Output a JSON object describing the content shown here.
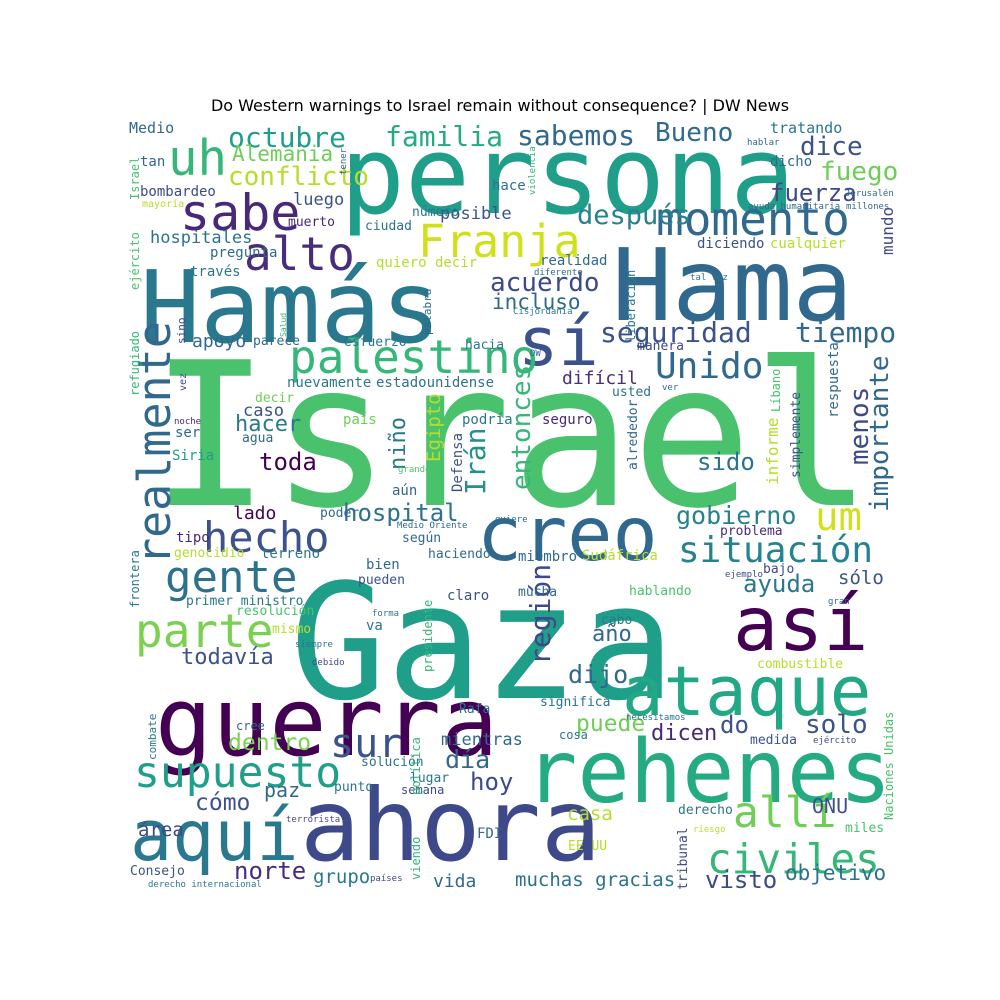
{
  "title": "Do Western warnings to Israel remain without consequence? | DW News",
  "colors": {
    "background": "#ffffff",
    "palette": [
      "#440154",
      "#482878",
      "#3e4989",
      "#31688e",
      "#26828e",
      "#1f9e89",
      "#35b779",
      "#6ece58",
      "#b5de2b",
      "#fde725"
    ]
  },
  "words": [
    {
      "text": "Israel",
      "rank": 1.0,
      "color": "#4ac16d"
    },
    {
      "text": "Gaza",
      "rank": 0.92,
      "color": "#1f9e89"
    },
    {
      "text": "persona",
      "rank": 0.72,
      "color": "#1f9e89"
    },
    {
      "text": "ahora",
      "rank": 0.7,
      "color": "#3e4989"
    },
    {
      "text": "Hamás",
      "rank": 0.66,
      "color": "#2a788e"
    },
    {
      "text": "Hama",
      "rank": 0.66,
      "color": "#31688e"
    },
    {
      "text": "guerra",
      "rank": 0.63,
      "color": "#440154"
    },
    {
      "text": "rehenes",
      "rank": 0.58,
      "color": "#25ab82"
    },
    {
      "text": "creo",
      "rank": 0.5,
      "color": "#31688e"
    },
    {
      "text": "así",
      "rank": 0.5,
      "color": "#440154"
    },
    {
      "text": "aquí",
      "rank": 0.47,
      "color": "#2a788e"
    },
    {
      "text": "ataque",
      "rank": 0.46,
      "color": "#22a884"
    },
    {
      "text": "sí",
      "rank": 0.45,
      "color": "#3b528b"
    },
    {
      "text": "sabe",
      "rank": 0.34,
      "color": "#482878"
    },
    {
      "text": "uh",
      "rank": 0.33,
      "color": "#35b779"
    },
    {
      "text": "Franja",
      "rank": 0.3,
      "color": "#d0e11c"
    },
    {
      "text": "momento",
      "rank": 0.31,
      "color": "#31688e"
    },
    {
      "text": "alto",
      "rank": 0.3,
      "color": "#472d7b"
    },
    {
      "text": "palestino",
      "rank": 0.3,
      "color": "#35b779"
    },
    {
      "text": "realmente",
      "rank": 0.29,
      "color": "#31688e"
    },
    {
      "text": "hecho",
      "rank": 0.28,
      "color": "#3b528b"
    },
    {
      "text": "gente",
      "rank": 0.29,
      "color": "#2c728e"
    },
    {
      "text": "parte",
      "rank": 0.3,
      "color": "#7ad151"
    },
    {
      "text": "supuesto",
      "rank": 0.29,
      "color": "#1f9e89"
    },
    {
      "text": "allí",
      "rank": 0.29,
      "color": "#6ece58"
    },
    {
      "text": "civiles",
      "rank": 0.28,
      "color": "#35b779"
    },
    {
      "text": "sur",
      "rank": 0.27,
      "color": "#3b528b"
    },
    {
      "text": "um",
      "rank": 0.26,
      "color": "#d0e11c"
    },
    {
      "text": "situación",
      "rank": 0.24,
      "color": "#26828e"
    },
    {
      "text": "Unido",
      "rank": 0.24,
      "color": "#31688e"
    },
    {
      "text": "seguridad",
      "rank": 0.19,
      "color": "#3b528b"
    },
    {
      "text": "tiempo",
      "rank": 0.19,
      "color": "#31688e"
    },
    {
      "text": "Irán",
      "rank": 0.19,
      "color": "#21918c"
    },
    {
      "text": "entonces",
      "rank": 0.16,
      "color": "#35b779"
    },
    {
      "text": "región",
      "rank": 0.18,
      "color": "#3e4989"
    },
    {
      "text": "importante",
      "rank": 0.17,
      "color": "#31688e"
    },
    {
      "text": "menos",
      "rank": 0.17,
      "color": "#3e4989"
    },
    {
      "text": "octubre",
      "rank": 0.19,
      "color": "#1f9e89"
    },
    {
      "text": "familia",
      "rank": 0.19,
      "color": "#25ab82"
    },
    {
      "text": "sabemos",
      "rank": 0.19,
      "color": "#31688e"
    },
    {
      "text": "Bueno",
      "rank": 0.18,
      "color": "#31688e"
    },
    {
      "text": "dice",
      "rank": 0.18,
      "color": "#3b528b"
    },
    {
      "text": "fuego",
      "rank": 0.18,
      "color": "#6ece58"
    },
    {
      "text": "conflicto",
      "rank": 0.18,
      "color": "#b5de2b"
    },
    {
      "text": "fuerza",
      "rank": 0.16,
      "color": "#3e4989"
    },
    {
      "text": "después",
      "rank": 0.17,
      "color": "#26828e"
    },
    {
      "text": "Alemania",
      "rank": 0.14,
      "color": "#6ece58"
    },
    {
      "text": "acuerdo",
      "rank": 0.17,
      "color": "#3e4989"
    },
    {
      "text": "incluso",
      "rank": 0.14,
      "color": "#31688e"
    },
    {
      "text": "hospital",
      "rank": 0.16,
      "color": "#2c728e"
    },
    {
      "text": "toda",
      "rank": 0.16,
      "color": "#440154"
    },
    {
      "text": "sido",
      "rank": 0.16,
      "color": "#2c728e"
    },
    {
      "text": "gobierno",
      "rank": 0.16,
      "color": "#26828e"
    },
    {
      "text": "ayuda",
      "rank": 0.16,
      "color": "#2a788e"
    },
    {
      "text": "dijo",
      "rank": 0.16,
      "color": "#31688e"
    },
    {
      "text": "puede",
      "rank": 0.15,
      "color": "#6ece58"
    },
    {
      "text": "solo",
      "rank": 0.16,
      "color": "#3b528b"
    },
    {
      "text": "dicen",
      "rank": 0.14,
      "color": "#482878"
    },
    {
      "text": "do",
      "rank": 0.16,
      "color": "#3b528b"
    },
    {
      "text": "dentro",
      "rank": 0.15,
      "color": "#7ad151"
    },
    {
      "text": "día",
      "rank": 0.16,
      "color": "#31688e"
    },
    {
      "text": "hoy",
      "rank": 0.16,
      "color": "#3e4989"
    },
    {
      "text": "cómo",
      "rank": 0.15,
      "color": "#3b528b"
    },
    {
      "text": "norte",
      "rank": 0.16,
      "color": "#472d7b"
    },
    {
      "text": "todavía",
      "rank": 0.14,
      "color": "#3b528b"
    },
    {
      "text": "visto",
      "rank": 0.15,
      "color": "#3e4989"
    },
    {
      "text": "objetivo",
      "rank": 0.13,
      "color": "#2c728e"
    },
    {
      "text": "muchas gracias",
      "rank": 0.12,
      "color": "#2c728e"
    },
    {
      "text": "año",
      "rank": 0.14,
      "color": "#31688e"
    },
    {
      "text": "sólo",
      "rank": 0.12,
      "color": "#3b528b"
    },
    {
      "text": "ONU",
      "rank": 0.13,
      "color": "#3b528b"
    },
    {
      "text": "casa",
      "rank": 0.12,
      "color": "#b5de2b"
    },
    {
      "text": "paz",
      "rank": 0.12,
      "color": "#31688e"
    },
    {
      "text": "área",
      "rank": 0.12,
      "color": "#3e4989"
    },
    {
      "text": "grupo",
      "rank": 0.12,
      "color": "#2a788e"
    },
    {
      "text": "vida",
      "rank": 0.11,
      "color": "#31688e"
    },
    {
      "text": "mientras",
      "rank": 0.11,
      "color": "#31688e"
    },
    {
      "text": "hacer",
      "rank": 0.14,
      "color": "#2a788e"
    },
    {
      "text": "caso",
      "rank": 0.11,
      "color": "#3b528b"
    },
    {
      "text": "niño",
      "rank": 0.12,
      "color": "#2a788e"
    },
    {
      "text": "Egipto",
      "rank": 0.11,
      "color": "#b5de2b"
    },
    {
      "text": "difícil",
      "rank": 0.11,
      "color": "#472d7b"
    },
    {
      "text": "apoyo",
      "rank": 0.11,
      "color": "#31688e"
    },
    {
      "text": "lado",
      "rank": 0.11,
      "color": "#440154"
    },
    {
      "text": "tipo",
      "rank": 0.09,
      "color": "#482878"
    },
    {
      "text": "hospitales",
      "rank": 0.11,
      "color": "#2c728e"
    },
    {
      "text": "luego",
      "rank": 0.11,
      "color": "#3b528b"
    },
    {
      "text": "posible",
      "rank": 0.11,
      "color": "#3b528b"
    },
    {
      "text": "informe",
      "rank": 0.1,
      "color": "#b5de2b"
    },
    {
      "text": "Defensa",
      "rank": 0.09,
      "color": "#3b528b"
    },
    {
      "text": "mundo",
      "rank": 0.09,
      "color": "#3e4989"
    },
    {
      "text": "respuesta",
      "rank": 0.08,
      "color": "#31688e"
    },
    {
      "text": "simplemente",
      "rank": 0.08,
      "color": "#3b528b"
    },
    {
      "text": "Líbano",
      "rank": 0.07,
      "color": "#4ac16d"
    },
    {
      "text": "tratando",
      "rank": 0.09,
      "color": "#2a788e"
    },
    {
      "text": "dicho",
      "rank": 0.09,
      "color": "#31688e"
    },
    {
      "text": "Medio",
      "rank": 0.09,
      "color": "#31688e"
    },
    {
      "text": "tan",
      "rank": 0.09,
      "color": "#31688e"
    },
    {
      "text": "bombardeo",
      "rank": 0.09,
      "color": "#3e4989"
    },
    {
      "text": "muerto",
      "rank": 0.09,
      "color": "#482878"
    },
    {
      "text": "número",
      "rank": 0.08,
      "color": "#2a788e"
    },
    {
      "text": "hace",
      "rank": 0.08,
      "color": "#2c728e"
    },
    {
      "text": "ciudad",
      "rank": 0.08,
      "color": "#2c728e"
    },
    {
      "text": "pregunta",
      "rank": 0.08,
      "color": "#31688e"
    },
    {
      "text": "través",
      "rank": 0.08,
      "color": "#2a788e"
    },
    {
      "text": "quiero decir",
      "rank": 0.08,
      "color": "#b5de2b"
    },
    {
      "text": "realidad",
      "rank": 0.08,
      "color": "#31688e"
    },
    {
      "text": "diciendo",
      "rank": 0.08,
      "color": "#3b528b"
    },
    {
      "text": "cualquier",
      "rank": 0.08,
      "color": "#b5de2b"
    },
    {
      "text": "esfuerzo",
      "rank": 0.08,
      "color": "#2a788e"
    },
    {
      "text": "parece",
      "rank": 0.08,
      "color": "#31688e"
    },
    {
      "text": "hacia",
      "rank": 0.08,
      "color": "#2a788e"
    },
    {
      "text": "manera",
      "rank": 0.08,
      "color": "#3e4989"
    },
    {
      "text": "nuevamente",
      "rank": 0.08,
      "color": "#2a788e"
    },
    {
      "text": "estadounidense",
      "rank": 0.08,
      "color": "#2c728e"
    },
    {
      "text": "usted",
      "rank": 0.08,
      "color": "#2c728e"
    },
    {
      "text": "decir",
      "rank": 0.08,
      "color": "#6ece58"
    },
    {
      "text": "ser",
      "rank": 0.08,
      "color": "#31688e"
    },
    {
      "text": "agua",
      "rank": 0.08,
      "color": "#31688e"
    },
    {
      "text": "Siria",
      "rank": 0.08,
      "color": "#1f9e89"
    },
    {
      "text": "país",
      "rank": 0.07,
      "color": "#6ece58"
    },
    {
      "text": "podría",
      "rank": 0.08,
      "color": "#2a788e"
    },
    {
      "text": "seguro",
      "rank": 0.08,
      "color": "#482878"
    },
    {
      "text": "alrededor",
      "rank": 0.07,
      "color": "#31688e"
    },
    {
      "text": "aún",
      "rank": 0.07,
      "color": "#31688e"
    },
    {
      "text": "poder",
      "rank": 0.07,
      "color": "#31688e"
    },
    {
      "text": "según",
      "rank": 0.08,
      "color": "#31688e"
    },
    {
      "text": "haciendo",
      "rank": 0.08,
      "color": "#31688e"
    },
    {
      "text": "miembro",
      "rank": 0.08,
      "color": "#31688e"
    },
    {
      "text": "Sudáfrica",
      "rank": 0.08,
      "color": "#b5de2b"
    },
    {
      "text": "problema",
      "rank": 0.08,
      "color": "#472d7b"
    },
    {
      "text": "bajo",
      "rank": 0.07,
      "color": "#3e4989"
    },
    {
      "text": "genocidio",
      "rank": 0.07,
      "color": "#b5de2b"
    },
    {
      "text": "terreno",
      "rank": 0.08,
      "color": "#2a788e"
    },
    {
      "text": "bien",
      "rank": 0.08,
      "color": "#31688e"
    },
    {
      "text": "pueden",
      "rank": 0.07,
      "color": "#3b528b"
    },
    {
      "text": "mucha",
      "rank": 0.07,
      "color": "#31688e"
    },
    {
      "text": "hablando",
      "rank": 0.08,
      "color": "#4ac16d"
    },
    {
      "text": "primer ministro",
      "rank": 0.08,
      "color": "#2a788e"
    },
    {
      "text": "resolución",
      "rank": 0.08,
      "color": "#4ac16d"
    },
    {
      "text": "claro",
      "rank": 0.08,
      "color": "#3b528b"
    },
    {
      "text": "cabo",
      "rank": 0.07,
      "color": "#2a788e"
    },
    {
      "text": "mismo",
      "rank": 0.07,
      "color": "#b5de2b"
    },
    {
      "text": "va",
      "rank": 0.07,
      "color": "#2c728e"
    },
    {
      "text": "presidente",
      "rank": 0.07,
      "color": "#35b779"
    },
    {
      "text": "combustible",
      "rank": 0.07,
      "color": "#b5de2b"
    },
    {
      "text": "significa",
      "rank": 0.08,
      "color": "#2c728e"
    },
    {
      "text": "Rafa",
      "rank": 0.07,
      "color": "#2c728e"
    },
    {
      "text": "cosa",
      "rank": 0.07,
      "color": "#2c728e"
    },
    {
      "text": "medida",
      "rank": 0.07,
      "color": "#3b528b"
    },
    {
      "text": "cree",
      "rank": 0.07,
      "color": "#31688e"
    },
    {
      "text": "solución",
      "rank": 0.07,
      "color": "#2c728e"
    },
    {
      "text": "lugar",
      "rank": 0.07,
      "color": "#2a788e"
    },
    {
      "text": "punto",
      "rank": 0.07,
      "color": "#2c728e"
    },
    {
      "text": "semana",
      "rank": 0.07,
      "color": "#3e4989"
    },
    {
      "text": "derecho",
      "rank": 0.07,
      "color": "#2c728e"
    },
    {
      "text": "FDI",
      "rank": 0.07,
      "color": "#31688e"
    },
    {
      "text": "EE UU",
      "rank": 0.07,
      "color": "#b5de2b"
    },
    {
      "text": "miles",
      "rank": 0.07,
      "color": "#4ac16d"
    },
    {
      "text": "Consejo",
      "rank": 0.07,
      "color": "#3b528b"
    },
    {
      "text": "tribunal",
      "rank": 0.07,
      "color": "#3e4989"
    },
    {
      "text": "viendo",
      "rank": 0.07,
      "color": "#35b779"
    },
    {
      "text": "política",
      "rank": 0.07,
      "color": "#35b779"
    },
    {
      "text": "frontera",
      "rank": 0.06,
      "color": "#2a788e"
    },
    {
      "text": "combate",
      "rank": 0.06,
      "color": "#2a788e"
    },
    {
      "text": "refugiado",
      "rank": 0.06,
      "color": "#35b779"
    },
    {
      "text": "ejército",
      "rank": 0.06,
      "color": "#4ac16d"
    },
    {
      "text": "Israel",
      "rank": 0.06,
      "color": "#4ac16d",
      "small": true
    },
    {
      "text": "Naciones Unidas",
      "rank": 0.06,
      "color": "#4ac16d"
    },
    {
      "text": "liberación",
      "rank": 0.06,
      "color": "#2a788e"
    },
    {
      "text": "palabra",
      "rank": 0.06,
      "color": "#31688e"
    },
    {
      "text": "mayoría",
      "rank": 0.04,
      "color": "#b5de2b"
    },
    {
      "text": "tener",
      "rank": 0.04,
      "color": "#31688e"
    },
    {
      "text": "violencia",
      "rank": 0.04,
      "color": "#35b779"
    },
    {
      "text": "Cisjordania",
      "rank": 0.05,
      "color": "#2a788e"
    },
    {
      "text": "diferente",
      "rank": 0.04,
      "color": "#31688e"
    },
    {
      "text": "Salud",
      "rank": 0.04,
      "color": "#35b779"
    },
    {
      "text": "hablar",
      "rank": 0.04,
      "color": "#31688e"
    },
    {
      "text": "Jerusalén",
      "rank": 0.04,
      "color": "#31688e"
    },
    {
      "text": "ayuda humanitaria",
      "rank": 0.04,
      "color": "#31688e"
    },
    {
      "text": "millones",
      "rank": 0.04,
      "color": "#31688e"
    },
    {
      "text": "tal vez",
      "rank": 0.04,
      "color": "#2a788e"
    },
    {
      "text": "vez",
      "rank": 0.05,
      "color": "#3e4989"
    },
    {
      "text": "sino",
      "rank": 0.05,
      "color": "#3e4989"
    },
    {
      "text": "noche",
      "rank": 0.04,
      "color": "#482878"
    },
    {
      "text": "grande",
      "rank": 0.04,
      "color": "#4ac16d"
    },
    {
      "text": "DW",
      "rank": 0.04,
      "color": "#31688e"
    },
    {
      "text": "ver",
      "rank": 0.04,
      "color": "#31688e"
    },
    {
      "text": "quiere",
      "rank": 0.04,
      "color": "#31688e"
    },
    {
      "text": "Medio Oriente",
      "rank": 0.04,
      "color": "#31688e"
    },
    {
      "text": "ejemplo",
      "rank": 0.04,
      "color": "#3e4989"
    },
    {
      "text": "gran",
      "rank": 0.04,
      "color": "#31688e"
    },
    {
      "text": "forma",
      "rank": 0.04,
      "color": "#2a788e"
    },
    {
      "text": "siempre",
      "rank": 0.04,
      "color": "#2c728e"
    },
    {
      "text": "debido",
      "rank": 0.04,
      "color": "#3e4989"
    },
    {
      "text": "necesitamos",
      "rank": 0.04,
      "color": "#2c728e"
    },
    {
      "text": "ejército",
      "rank": 0.04,
      "color": "#3e4989",
      "small": true
    },
    {
      "text": "terrorista",
      "rank": 0.04,
      "color": "#3e4989"
    },
    {
      "text": "riesgo",
      "rank": 0.04,
      "color": "#b5de2b"
    },
    {
      "text": "países",
      "rank": 0.04,
      "color": "#3e4989"
    },
    {
      "text": "derecho internacional",
      "rank": 0.04,
      "color": "#2a788e"
    }
  ]
}
